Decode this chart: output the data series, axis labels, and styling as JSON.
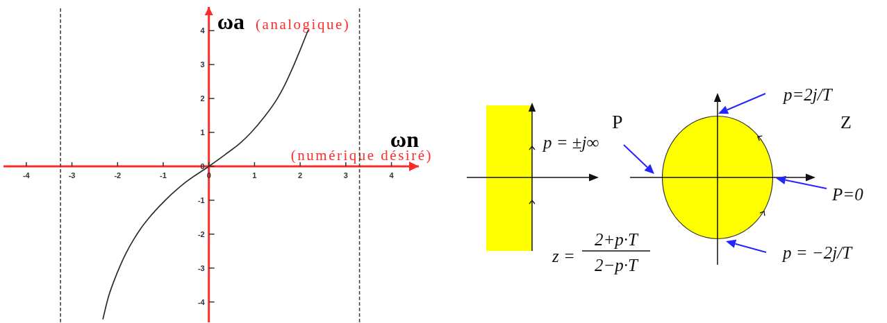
{
  "chart_data": [
    {
      "type": "line",
      "xlabel": "ωn (numérique désiré)",
      "ylabel": "ωa (analogique)",
      "x": [
        -2.32,
        -2.2,
        -2.07,
        -1.94,
        -1.81,
        -1.64,
        -1.5,
        -1.33,
        -0.97,
        -0.51,
        0,
        0.35,
        0.7,
        0.92,
        1.21,
        1.5,
        1.67,
        1.85,
        2.0,
        2.17
      ],
      "series": [
        {
          "color": "#2b2b2b",
          "values": [
            -4.5,
            -3.85,
            -3.35,
            -2.92,
            -2.55,
            -2.14,
            -1.85,
            -1.55,
            -1.02,
            -0.47,
            0,
            0.34,
            0.7,
            0.99,
            1.45,
            2.0,
            2.42,
            2.95,
            3.43,
            4.0
          ]
        }
      ],
      "xlim": [
        -4.5,
        4.6
      ],
      "ylim": [
        -4.6,
        4.7
      ],
      "xticks": [
        -4,
        -3,
        -2,
        -1,
        0,
        1,
        2,
        3,
        4
      ],
      "yticks": [
        -4,
        -3,
        -2,
        -1,
        0,
        1,
        2,
        3,
        4
      ],
      "ref_lines": [
        {
          "axis": "x",
          "value": -3.25,
          "color": "#444444",
          "line_style": "dashed"
        },
        {
          "axis": "x",
          "value": 3.3,
          "color": "#444444",
          "line_style": "dashed"
        }
      ]
    },
    {
      "type": "other",
      "annotations": [
        "P",
        "p = ±j∞",
        "z =",
        "2+p·T",
        "2−p·T",
        "p=2j/T",
        "Z",
        "P=0",
        "p = −2j/T"
      ]
    }
  ]
}
